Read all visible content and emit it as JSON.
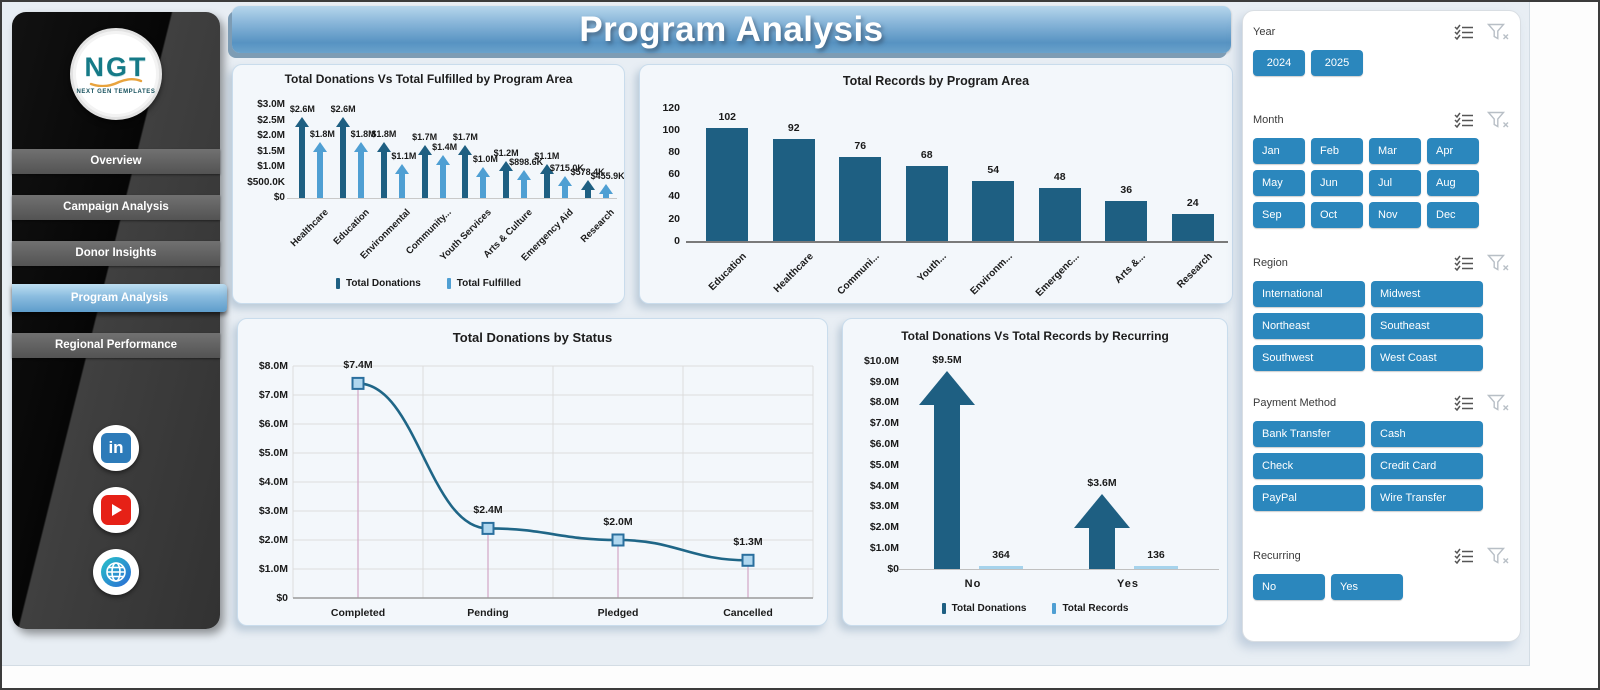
{
  "header": {
    "title": "Program Analysis"
  },
  "sidebar": {
    "logo": {
      "text": "NGT",
      "tagline": "NEXT GEN TEMPLATES"
    },
    "items": [
      {
        "label": "Overview",
        "active": false
      },
      {
        "label": "Campaign Analysis",
        "active": false
      },
      {
        "label": "Donor Insights",
        "active": false
      },
      {
        "label": "Program Analysis",
        "active": true
      },
      {
        "label": "Regional Performance",
        "active": false
      }
    ],
    "social": [
      "LinkedIn",
      "YouTube",
      "Website"
    ]
  },
  "filters": {
    "sections": [
      {
        "title": "Year",
        "options": [
          "2024",
          "2025"
        ]
      },
      {
        "title": "Month",
        "options": [
          "Jan",
          "Feb",
          "Mar",
          "Apr",
          "May",
          "Jun",
          "Jul",
          "Aug",
          "Sep",
          "Oct",
          "Nov",
          "Dec"
        ]
      },
      {
        "title": "Region",
        "options": [
          "International",
          "Midwest",
          "Northeast",
          "Southeast",
          "Southwest",
          "West Coast"
        ]
      },
      {
        "title": "Payment Method",
        "options": [
          "Bank Transfer",
          "Cash",
          "Check",
          "Credit Card",
          "PayPal",
          "Wire Transfer"
        ]
      },
      {
        "title": "Recurring",
        "options": [
          "No",
          "Yes"
        ]
      }
    ]
  },
  "chart_data": [
    {
      "type": "bar",
      "variant": "paired-arrows",
      "title": "Total Donations Vs Total Fulfilled by Program Area",
      "categories": [
        "Healthcare",
        "Education",
        "Environmental",
        "Community...",
        "Youth Services",
        "Arts & Culture",
        "Emergency Aid",
        "Research"
      ],
      "series": [
        {
          "name": "Total Donations",
          "values": [
            2.6,
            2.6,
            1.8,
            1.7,
            1.7,
            1.2,
            1.1,
            0.5784
          ],
          "labels": [
            "$2.6M",
            "$2.6M",
            "$1.8M",
            "$1.7M",
            "$1.7M",
            "$1.2M",
            "$1.1M",
            "$578.4K"
          ]
        },
        {
          "name": "Total Fulfilled",
          "values": [
            1.8,
            1.8,
            1.1,
            1.4,
            1.0,
            0.8986,
            0.715,
            0.4559
          ],
          "labels": [
            "$1.8M",
            "$1.8M",
            "$1.1M",
            "$1.4M",
            "$1.0M",
            "$898.6K",
            "$715.0K",
            "$455.9K"
          ]
        }
      ],
      "y_ticks": [
        "$3.0M",
        "$2.5M",
        "$2.0M",
        "$1.5M",
        "$1.0M",
        "$500.0K",
        "$0"
      ],
      "ymax": 3.0,
      "ylabel": "",
      "xlabel": "",
      "legend": [
        "Total Donations",
        "Total Fulfilled"
      ],
      "legend_position": "bottom"
    },
    {
      "type": "bar",
      "title": "Total Records by Program Area",
      "categories": [
        "Education",
        "Healthcare",
        "Communi...",
        "Youth...",
        "Environm...",
        "Emergenc...",
        "Arts &...",
        "Research"
      ],
      "values": [
        102,
        92,
        76,
        68,
        54,
        48,
        36,
        24
      ],
      "y_ticks": [
        "120",
        "100",
        "80",
        "60",
        "40",
        "20",
        "0"
      ],
      "ymax": 120,
      "ylabel": "",
      "xlabel": ""
    },
    {
      "type": "line",
      "title": "Total Donations by Status",
      "categories": [
        "Completed",
        "Pending",
        "Pledged",
        "Cancelled"
      ],
      "values": [
        7.4,
        2.4,
        2.0,
        1.3
      ],
      "labels": [
        "$7.4M",
        "$2.4M",
        "$2.0M",
        "$1.3M"
      ],
      "y_ticks": [
        "$8.0M",
        "$7.0M",
        "$6.0M",
        "$5.0M",
        "$4.0M",
        "$3.0M",
        "$2.0M",
        "$1.0M",
        "$0"
      ],
      "ymax": 8.0,
      "grid": true,
      "ylabel": "",
      "xlabel": ""
    },
    {
      "type": "bar",
      "variant": "arrow-vs-bar",
      "title": "Total Donations Vs Total Records by Recurring",
      "categories": [
        "No",
        "Yes"
      ],
      "series": [
        {
          "name": "Total Donations",
          "values": [
            9.5,
            3.6
          ],
          "labels": [
            "$9.5M",
            "$3.6M"
          ]
        },
        {
          "name": "Total Records",
          "values": [
            364,
            136
          ],
          "labels": [
            "364",
            "136"
          ]
        }
      ],
      "y_ticks": [
        "$10.0M",
        "$9.0M",
        "$8.0M",
        "$7.0M",
        "$6.0M",
        "$5.0M",
        "$4.0M",
        "$3.0M",
        "$2.0M",
        "$1.0M",
        "$0"
      ],
      "ymax": 10.0,
      "ylabel": "",
      "xlabel": "",
      "legend": [
        "Total Donations",
        "Total Records"
      ],
      "legend_position": "bottom"
    }
  ],
  "colors": {
    "accent_button": "#2b87bd",
    "series_dark": "#1e5f82",
    "series_light": "#4f9fd3",
    "line": "#1f6687",
    "marker_fill": "#b0d7ef",
    "marker_stroke": "#2a6f9e",
    "dropline": "#d2a7c6",
    "banner_blue": "#5793c2"
  }
}
